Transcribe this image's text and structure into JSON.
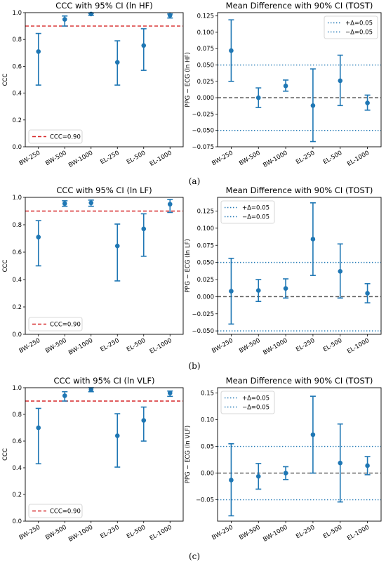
{
  "figure": {
    "captions": [
      "(a)",
      "(b)",
      "(c)"
    ]
  },
  "colors": {
    "series": "#1f77b4",
    "threshold": "#d62728",
    "zero_line": "#555555"
  },
  "chart_data": [
    {
      "type": "scatter",
      "title": "CCC with 95% CI (ln HF)",
      "xlabel": "",
      "ylabel": "CCC",
      "categories": [
        "BW-250",
        "BW-500",
        "BW-1000",
        "EL-250",
        "EL-500",
        "EL-1000"
      ],
      "values": [
        0.71,
        0.95,
        0.99,
        0.63,
        0.755,
        0.98
      ],
      "ci_low": [
        0.46,
        0.9,
        0.98,
        0.46,
        0.57,
        0.96
      ],
      "ci_high": [
        0.845,
        0.975,
        0.995,
        0.79,
        0.88,
        0.99
      ],
      "ylim": [
        0,
        1.0
      ],
      "yticks": [
        0.0,
        0.2,
        0.4,
        0.6,
        0.8,
        1.0
      ],
      "ytick_labels": [
        "0.0",
        "0.2",
        "0.4",
        "0.6",
        "0.8",
        "1.0"
      ],
      "reference_lines": [
        {
          "y": 0.9,
          "label": "CCC=0.90",
          "style": "dashed",
          "color": "#d62728"
        }
      ],
      "legend_position": "bottom-left",
      "grid": false
    },
    {
      "type": "scatter",
      "title": "Mean Difference with 90% CI (TOST)",
      "xlabel": "",
      "ylabel": "PPG − ECG (ln HF)",
      "categories": [
        "BW-250",
        "BW-500",
        "BW-1000",
        "EL-250",
        "EL-500",
        "EL-1000"
      ],
      "values": [
        0.072,
        0.0,
        0.018,
        -0.012,
        0.026,
        -0.008
      ],
      "ci_low": [
        0.025,
        -0.015,
        0.01,
        -0.067,
        -0.012,
        -0.019
      ],
      "ci_high": [
        0.119,
        0.015,
        0.027,
        0.044,
        0.065,
        0.004
      ],
      "ylim": [
        -0.075,
        0.13
      ],
      "yticks": [
        -0.075,
        -0.05,
        -0.025,
        0.0,
        0.025,
        0.05,
        0.075,
        0.1,
        0.125
      ],
      "ytick_labels": [
        "−0.075",
        "−0.050",
        "−0.025",
        "0.000",
        "0.025",
        "0.050",
        "0.075",
        "0.100",
        "0.125"
      ],
      "reference_lines": [
        {
          "y": 0.05,
          "label": "+Δ=0.05",
          "style": "dotted",
          "color": "#1f77b4"
        },
        {
          "y": -0.05,
          "label": "−Δ=0.05",
          "style": "dotted",
          "color": "#1f77b4"
        },
        {
          "y": 0.0,
          "label": "",
          "style": "dashed",
          "color": "#555555"
        }
      ],
      "legend_position": "top-right",
      "grid": false
    },
    {
      "type": "scatter",
      "title": "CCC with 95% CI (ln LF)",
      "xlabel": "",
      "ylabel": "CCC",
      "categories": [
        "BW-250",
        "BW-500",
        "BW-1000",
        "EL-250",
        "EL-500",
        "EL-1000"
      ],
      "values": [
        0.71,
        0.955,
        0.96,
        0.645,
        0.77,
        0.95
      ],
      "ci_low": [
        0.5,
        0.935,
        0.935,
        0.39,
        0.57,
        0.89
      ],
      "ci_high": [
        0.83,
        0.975,
        0.98,
        0.805,
        0.88,
        0.985
      ],
      "ylim": [
        0,
        1.0
      ],
      "yticks": [
        0.0,
        0.2,
        0.4,
        0.6,
        0.8,
        1.0
      ],
      "ytick_labels": [
        "0.0",
        "0.2",
        "0.4",
        "0.6",
        "0.8",
        "1.0"
      ],
      "reference_lines": [
        {
          "y": 0.9,
          "label": "CCC=0.90",
          "style": "dashed",
          "color": "#d62728"
        }
      ],
      "legend_position": "bottom-left",
      "grid": false
    },
    {
      "type": "scatter",
      "title": "Mean Difference with 90% CI (TOST)",
      "xlabel": "",
      "ylabel": "PPG − ECG (ln LF)",
      "categories": [
        "BW-250",
        "BW-500",
        "BW-1000",
        "EL-250",
        "EL-500",
        "EL-1000"
      ],
      "values": [
        0.008,
        0.009,
        0.012,
        0.084,
        0.037,
        0.005
      ],
      "ci_low": [
        -0.04,
        -0.007,
        -0.002,
        0.031,
        -0.002,
        -0.009
      ],
      "ci_high": [
        0.056,
        0.025,
        0.026,
        0.137,
        0.077,
        0.019
      ],
      "ylim": [
        -0.055,
        0.145
      ],
      "yticks": [
        -0.05,
        -0.025,
        0.0,
        0.025,
        0.05,
        0.075,
        0.1,
        0.125
      ],
      "ytick_labels": [
        "−0.050",
        "−0.025",
        "0.000",
        "0.025",
        "0.050",
        "0.075",
        "0.100",
        "0.125"
      ],
      "reference_lines": [
        {
          "y": 0.05,
          "label": "+Δ=0.05",
          "style": "dotted",
          "color": "#1f77b4"
        },
        {
          "y": -0.05,
          "label": "−Δ=0.05",
          "style": "dotted",
          "color": "#1f77b4"
        },
        {
          "y": 0.0,
          "label": "",
          "style": "dashed",
          "color": "#555555"
        }
      ],
      "legend_position": "top-left",
      "grid": false
    },
    {
      "type": "scatter",
      "title": "CCC with 95% CI (ln VLF)",
      "xlabel": "",
      "ylabel": "CCC",
      "categories": [
        "BW-250",
        "BW-500",
        "BW-1000",
        "EL-250",
        "EL-500",
        "EL-1000"
      ],
      "values": [
        0.7,
        0.94,
        0.985,
        0.64,
        0.755,
        0.96
      ],
      "ci_low": [
        0.43,
        0.9,
        0.97,
        0.405,
        0.6,
        0.935
      ],
      "ci_high": [
        0.845,
        0.97,
        1.0,
        0.805,
        0.855,
        0.975
      ],
      "ylim": [
        0,
        1.0
      ],
      "yticks": [
        0.0,
        0.2,
        0.4,
        0.6,
        0.8,
        1.0
      ],
      "ytick_labels": [
        "0.0",
        "0.2",
        "0.4",
        "0.6",
        "0.8",
        "1.0"
      ],
      "reference_lines": [
        {
          "y": 0.9,
          "label": "CCC=0.90",
          "style": "dashed",
          "color": "#d62728"
        }
      ],
      "legend_position": "bottom-left",
      "grid": false
    },
    {
      "type": "scatter",
      "title": "Mean Difference with 90% CI (TOST)",
      "xlabel": "",
      "ylabel": "PPG − ECG (ln VLF)",
      "categories": [
        "BW-250",
        "BW-500",
        "BW-1000",
        "EL-250",
        "EL-500",
        "EL-1000"
      ],
      "values": [
        -0.013,
        -0.006,
        0.0,
        0.072,
        0.019,
        0.014
      ],
      "ci_low": [
        -0.08,
        -0.03,
        -0.012,
        0.0,
        -0.054,
        -0.003
      ],
      "ci_high": [
        0.055,
        0.018,
        0.012,
        0.144,
        0.092,
        0.031
      ],
      "ylim": [
        -0.09,
        0.16
      ],
      "yticks": [
        -0.05,
        0.0,
        0.05,
        0.1,
        0.15
      ],
      "ytick_labels": [
        "−0.05",
        "0.00",
        "0.05",
        "0.10",
        "0.15"
      ],
      "reference_lines": [
        {
          "y": 0.05,
          "label": "+Δ=0.05",
          "style": "dotted",
          "color": "#1f77b4"
        },
        {
          "y": -0.05,
          "label": "−Δ=0.05",
          "style": "dotted",
          "color": "#1f77b4"
        },
        {
          "y": 0.0,
          "label": "",
          "style": "dashed",
          "color": "#555555"
        }
      ],
      "legend_position": "top-left",
      "grid": false
    }
  ]
}
